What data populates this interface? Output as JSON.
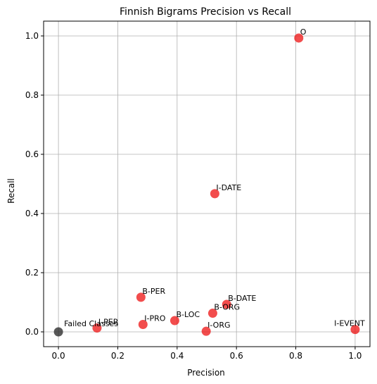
{
  "chart_data": {
    "type": "scatter",
    "title": "Finnish Bigrams Precision vs Recall",
    "xlabel": "Precision",
    "ylabel": "Recall",
    "xlim": [
      -0.05,
      1.05
    ],
    "ylim": [
      -0.05,
      1.05
    ],
    "xticks": [
      0.0,
      0.2,
      0.4,
      0.6,
      0.8,
      1.0
    ],
    "yticks": [
      0.0,
      0.2,
      0.4,
      0.6,
      0.8,
      1.0
    ],
    "xtick_labels": [
      "0.0",
      "0.2",
      "0.4",
      "0.6",
      "0.8",
      "1.0"
    ],
    "ytick_labels": [
      "0.0",
      "0.2",
      "0.4",
      "0.6",
      "0.8",
      "1.0"
    ],
    "grid": true,
    "point_color": "#ee1111",
    "failed_color": "#222222",
    "points": [
      {
        "label": "O",
        "x": 0.81,
        "y": 0.993
      },
      {
        "label": "I-DATE",
        "x": 0.527,
        "y": 0.467
      },
      {
        "label": "B-PER",
        "x": 0.278,
        "y": 0.117
      },
      {
        "label": "B-DATE",
        "x": 0.567,
        "y": 0.093
      },
      {
        "label": "B-ORG",
        "x": 0.52,
        "y": 0.063
      },
      {
        "label": "B-LOC",
        "x": 0.392,
        "y": 0.038
      },
      {
        "label": "I-PRO",
        "x": 0.285,
        "y": 0.025
      },
      {
        "label": "I-PER",
        "x": 0.13,
        "y": 0.013
      },
      {
        "label": "I-ORG",
        "x": 0.498,
        "y": 0.002
      },
      {
        "label": "I-EVENT",
        "x": 1.0,
        "y": 0.008
      },
      {
        "label": "Failed Classes",
        "x": 0.0,
        "y": 0.0,
        "failed": true
      }
    ]
  }
}
